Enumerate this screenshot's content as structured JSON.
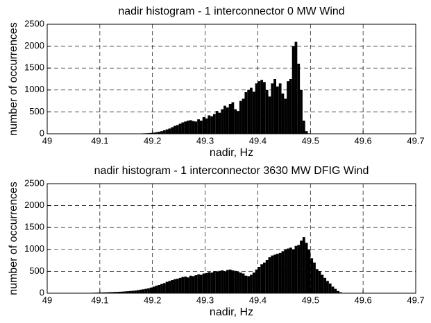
{
  "chart_data": [
    {
      "type": "histogram",
      "title": "nadir histogram - 1 interconnector 0 MW Wind",
      "xlabel": "nadir, Hz",
      "ylabel": "number of occurrences",
      "color": "#000000",
      "grid": true,
      "xlim": [
        49,
        49.7
      ],
      "xticks": [
        49,
        49.1,
        49.2,
        49.3,
        49.4,
        49.5,
        49.6,
        49.7
      ],
      "ylim": [
        0,
        2500
      ],
      "yticks": [
        0,
        500,
        1000,
        1500,
        2000,
        2500
      ],
      "bins": [
        49.15,
        49.155,
        49.16,
        49.165,
        49.17,
        49.175,
        49.18,
        49.185,
        49.19,
        49.195,
        49.2,
        49.205,
        49.21,
        49.215,
        49.22,
        49.225,
        49.23,
        49.235,
        49.24,
        49.245,
        49.25,
        49.255,
        49.26,
        49.265,
        49.27,
        49.275,
        49.28,
        49.285,
        49.29,
        49.295,
        49.3,
        49.305,
        49.31,
        49.315,
        49.32,
        49.325,
        49.33,
        49.335,
        49.34,
        49.345,
        49.35,
        49.355,
        49.36,
        49.365,
        49.37,
        49.375,
        49.38,
        49.385,
        49.39,
        49.395,
        49.4,
        49.405,
        49.41,
        49.415,
        49.42,
        49.425,
        49.43,
        49.435,
        49.44,
        49.445,
        49.45,
        49.455,
        49.46,
        49.465,
        49.47,
        49.475,
        49.48,
        49.485,
        49.49,
        49.495,
        49.5
      ],
      "values": [
        2,
        3,
        4,
        5,
        6,
        8,
        10,
        12,
        15,
        20,
        25,
        35,
        45,
        60,
        80,
        100,
        120,
        150,
        180,
        200,
        230,
        260,
        280,
        300,
        310,
        290,
        280,
        330,
        300,
        380,
        350,
        420,
        400,
        450,
        520,
        480,
        560,
        640,
        600,
        680,
        720,
        560,
        520,
        750,
        800,
        950,
        1000,
        1050,
        960,
        1150,
        1200,
        1230,
        1180,
        1000,
        850,
        1150,
        1250,
        1080,
        1150,
        920,
        800,
        1200,
        1250,
        2000,
        2100,
        1600,
        1000,
        300,
        60,
        10
      ]
    },
    {
      "type": "histogram",
      "title": "nadir histogram - 1 interconnector 3630 MW DFIG Wind",
      "xlabel": "nadir, Hz",
      "ylabel": "number of occurrences",
      "color": "#000000",
      "grid": true,
      "xlim": [
        49,
        49.7
      ],
      "xticks": [
        49,
        49.1,
        49.2,
        49.3,
        49.4,
        49.5,
        49.6,
        49.7
      ],
      "ylim": [
        0,
        2500
      ],
      "yticks": [
        0,
        500,
        1000,
        1500,
        2000,
        2500
      ],
      "bins": [
        49.05,
        49.055,
        49.06,
        49.065,
        49.07,
        49.075,
        49.08,
        49.085,
        49.09,
        49.095,
        49.1,
        49.105,
        49.11,
        49.115,
        49.12,
        49.125,
        49.13,
        49.135,
        49.14,
        49.145,
        49.15,
        49.155,
        49.16,
        49.165,
        49.17,
        49.175,
        49.18,
        49.185,
        49.19,
        49.195,
        49.2,
        49.205,
        49.21,
        49.215,
        49.22,
        49.225,
        49.23,
        49.235,
        49.24,
        49.245,
        49.25,
        49.255,
        49.26,
        49.265,
        49.27,
        49.275,
        49.28,
        49.285,
        49.29,
        49.295,
        49.3,
        49.305,
        49.31,
        49.315,
        49.32,
        49.325,
        49.33,
        49.335,
        49.34,
        49.345,
        49.35,
        49.355,
        49.36,
        49.365,
        49.37,
        49.375,
        49.38,
        49.385,
        49.39,
        49.395,
        49.4,
        49.405,
        49.41,
        49.415,
        49.42,
        49.425,
        49.43,
        49.435,
        49.44,
        49.445,
        49.45,
        49.455,
        49.46,
        49.465,
        49.47,
        49.475,
        49.48,
        49.485,
        49.49,
        49.495,
        49.5,
        49.505,
        49.51,
        49.515,
        49.52,
        49.525,
        49.53,
        49.535,
        49.54,
        49.545,
        49.55,
        49.555,
        49.56
      ],
      "values": [
        3,
        4,
        5,
        6,
        7,
        8,
        9,
        10,
        12,
        14,
        16,
        18,
        20,
        22,
        25,
        28,
        30,
        33,
        36,
        40,
        45,
        50,
        55,
        60,
        70,
        80,
        90,
        100,
        110,
        130,
        150,
        170,
        190,
        210,
        230,
        260,
        280,
        300,
        320,
        330,
        350,
        370,
        380,
        360,
        400,
        390,
        410,
        430,
        420,
        450,
        460,
        480,
        470,
        500,
        490,
        510,
        520,
        500,
        530,
        540,
        520,
        510,
        490,
        470,
        450,
        400,
        390,
        420,
        470,
        540,
        600,
        660,
        700,
        760,
        820,
        860,
        880,
        900,
        920,
        960,
        1000,
        1020,
        1040,
        1000,
        1080,
        1100,
        1200,
        1280,
        1150,
        1000,
        800,
        700,
        550,
        500,
        420,
        350,
        280,
        220,
        150,
        100,
        50,
        20
      ]
    }
  ]
}
